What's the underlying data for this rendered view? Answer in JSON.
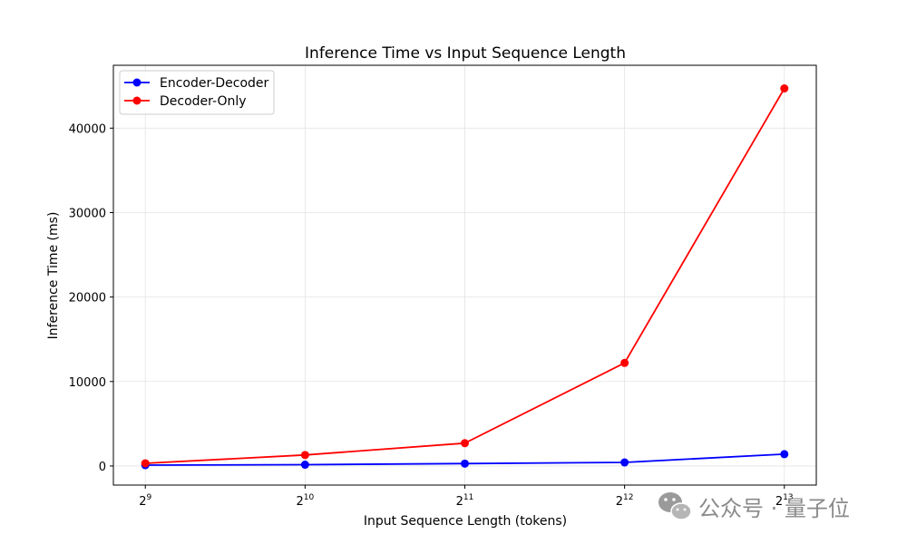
{
  "chart_data": {
    "type": "line",
    "title": "Inference Time vs Input Sequence Length",
    "xlabel": "Input Sequence Length (tokens)",
    "ylabel": "Inference Time (ms)",
    "x_scale": "log2",
    "x": [
      512,
      1024,
      2048,
      4096,
      8192
    ],
    "x_tick_labels": [
      {
        "base": "2",
        "exp": "9"
      },
      {
        "base": "2",
        "exp": "10"
      },
      {
        "base": "2",
        "exp": "11"
      },
      {
        "base": "2",
        "exp": "12"
      },
      {
        "base": "2",
        "exp": "13"
      }
    ],
    "ylim": [
      -2260,
      47440
    ],
    "y_ticks": [
      0,
      10000,
      20000,
      30000,
      40000
    ],
    "grid": true,
    "legend_position": "upper left",
    "series": [
      {
        "name": "Encoder-Decoder",
        "color": "#0000ff",
        "marker": "circle",
        "values": [
          100,
          150,
          280,
          420,
          1400
        ]
      },
      {
        "name": "Decoder-Only",
        "color": "#ff0000",
        "marker": "circle",
        "values": [
          320,
          1300,
          2700,
          12200,
          44700
        ]
      }
    ]
  },
  "watermark": {
    "text": "公众号 · 量子位",
    "icon": "wechat-icon"
  }
}
